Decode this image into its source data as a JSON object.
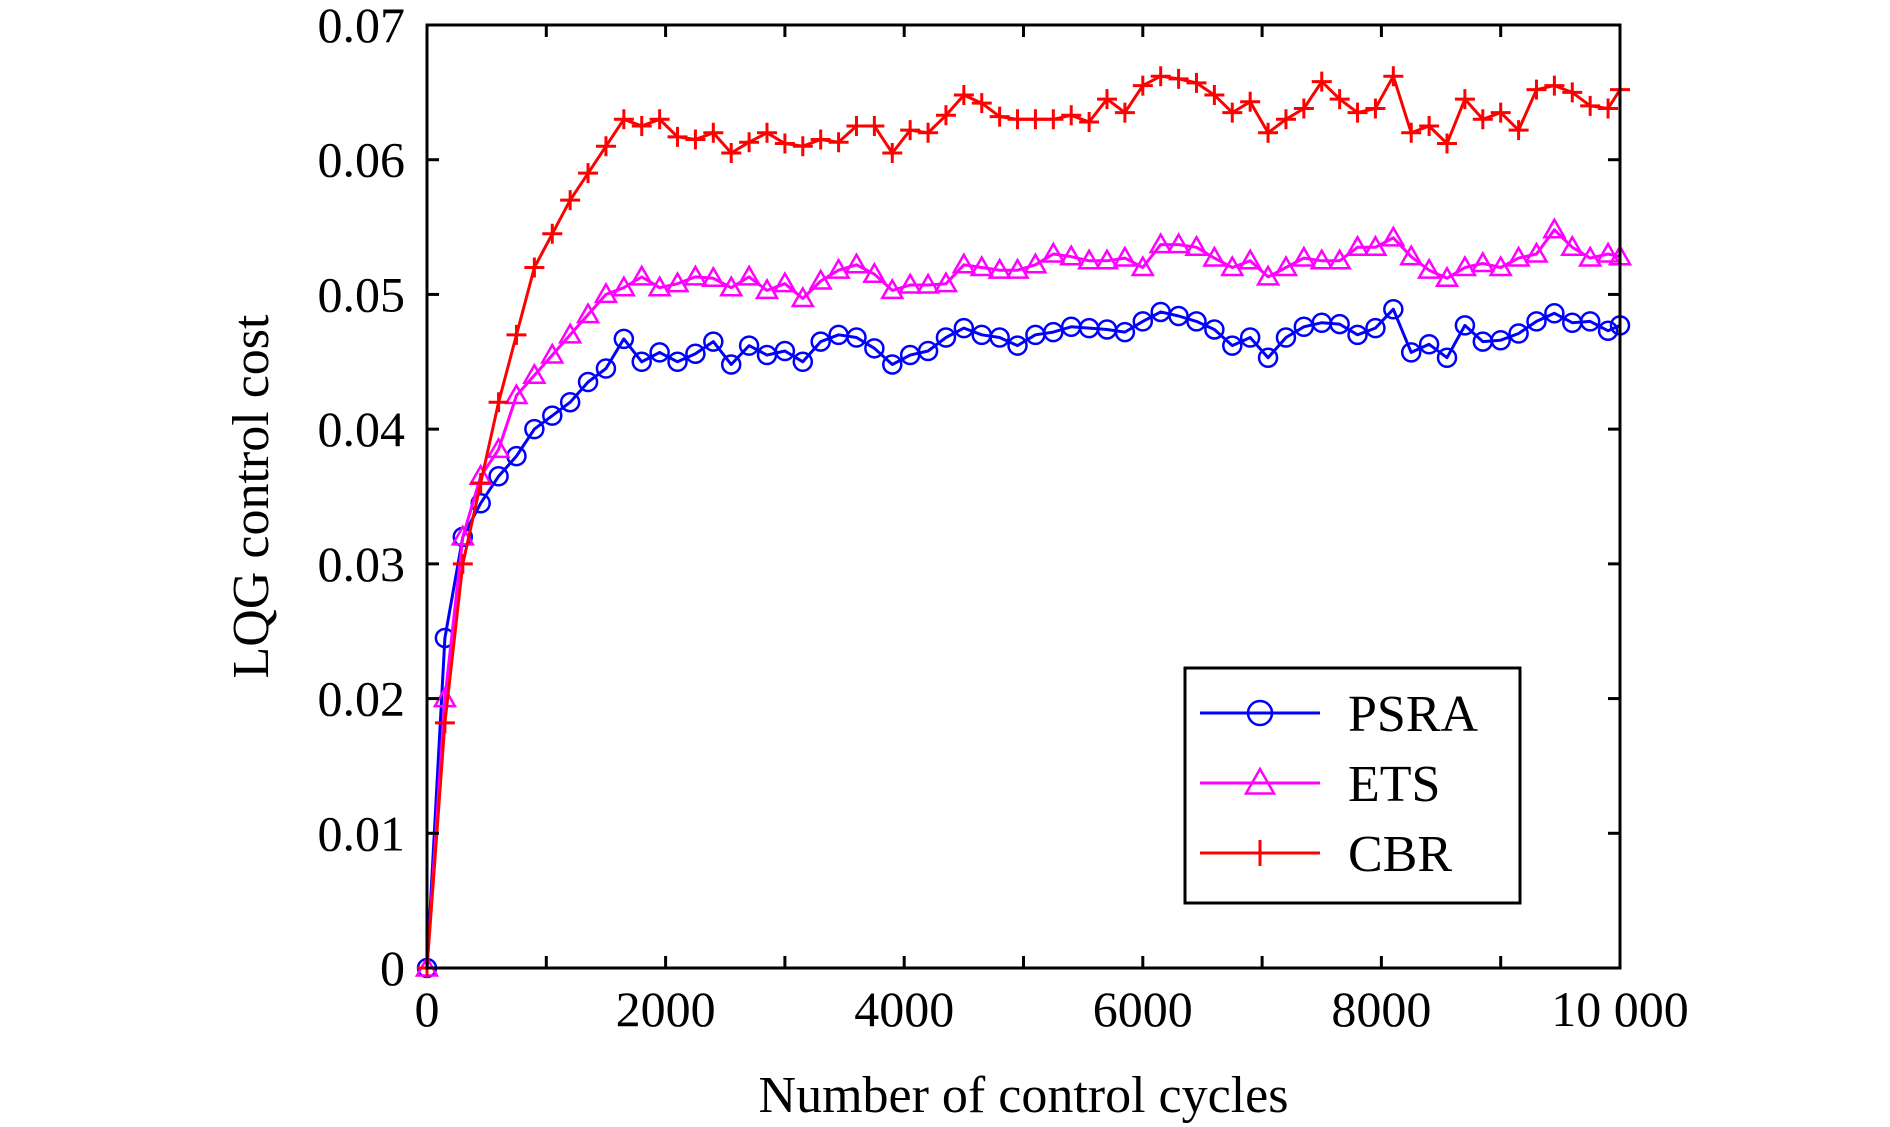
{
  "chart_data": {
    "type": "line",
    "xlabel": "Number of control cycles",
    "ylabel": "LQG control cost",
    "xlim": [
      0,
      10000
    ],
    "ylim": [
      0,
      0.07
    ],
    "xticks": [
      0,
      2000,
      4000,
      6000,
      8000,
      10000
    ],
    "xtick_labels": [
      "0",
      "2000",
      "4000",
      "6000",
      "8000",
      "10 000"
    ],
    "yticks": [
      0,
      0.01,
      0.02,
      0.03,
      0.04,
      0.05,
      0.06,
      0.07
    ],
    "ytick_labels": [
      "0",
      "0.01",
      "0.02",
      "0.03",
      "0.04",
      "0.05",
      "0.06",
      "0.07"
    ],
    "grid": false,
    "legend_position": "bottom-right",
    "x": [
      0,
      150,
      300,
      450,
      600,
      750,
      900,
      1050,
      1200,
      1350,
      1500,
      1650,
      1800,
      1950,
      2100,
      2250,
      2400,
      2550,
      2700,
      2850,
      3000,
      3150,
      3300,
      3450,
      3600,
      3750,
      3900,
      4050,
      4200,
      4350,
      4500,
      4650,
      4800,
      4950,
      5100,
      5250,
      5400,
      5550,
      5700,
      5850,
      6000,
      6150,
      6300,
      6450,
      6600,
      6750,
      6900,
      7050,
      7200,
      7350,
      7500,
      7650,
      7800,
      7950,
      8100,
      8250,
      8400,
      8550,
      8700,
      8850,
      9000,
      9150,
      9300,
      9450,
      9600,
      9750,
      9900,
      10000
    ],
    "series": [
      {
        "name": "PSRA",
        "color": "#0000ff",
        "marker": "circle",
        "values": [
          0,
          0.0245,
          0.032,
          0.0345,
          0.0365,
          0.038,
          0.04,
          0.041,
          0.042,
          0.0435,
          0.0445,
          0.0467,
          0.045,
          0.0457,
          0.045,
          0.0456,
          0.0465,
          0.0448,
          0.0462,
          0.0455,
          0.0458,
          0.045,
          0.0465,
          0.047,
          0.0468,
          0.046,
          0.0448,
          0.0455,
          0.0458,
          0.0468,
          0.0475,
          0.047,
          0.0468,
          0.0462,
          0.047,
          0.0472,
          0.0476,
          0.0475,
          0.0474,
          0.0472,
          0.048,
          0.0487,
          0.0484,
          0.048,
          0.0474,
          0.0462,
          0.0468,
          0.0453,
          0.0468,
          0.0476,
          0.0479,
          0.0478,
          0.047,
          0.0475,
          0.0489,
          0.0457,
          0.0463,
          0.0453,
          0.0477,
          0.0465,
          0.0466,
          0.0471,
          0.048,
          0.0486,
          0.0479,
          0.048,
          0.0473,
          0.0477
        ]
      },
      {
        "name": "ETS",
        "color": "#ff00ff",
        "marker": "triangle",
        "values": [
          0,
          0.02,
          0.032,
          0.0365,
          0.0385,
          0.0425,
          0.044,
          0.0455,
          0.047,
          0.0485,
          0.05,
          0.0505,
          0.0513,
          0.0505,
          0.0508,
          0.0513,
          0.0512,
          0.0505,
          0.0513,
          0.0503,
          0.0508,
          0.0497,
          0.051,
          0.0518,
          0.0522,
          0.0515,
          0.0503,
          0.0507,
          0.0507,
          0.0508,
          0.0522,
          0.052,
          0.0518,
          0.0518,
          0.0522,
          0.053,
          0.0528,
          0.0525,
          0.0525,
          0.0527,
          0.052,
          0.0537,
          0.0537,
          0.0535,
          0.0527,
          0.052,
          0.0525,
          0.0513,
          0.052,
          0.0527,
          0.0525,
          0.0525,
          0.0535,
          0.0535,
          0.0542,
          0.0528,
          0.0518,
          0.0512,
          0.052,
          0.0523,
          0.052,
          0.0527,
          0.053,
          0.0548,
          0.0535,
          0.0527,
          0.053,
          0.0528
        ]
      },
      {
        "name": "CBR",
        "color": "#ff0000",
        "marker": "plus",
        "values": [
          0,
          0.0182,
          0.03,
          0.036,
          0.042,
          0.047,
          0.052,
          0.0545,
          0.057,
          0.059,
          0.061,
          0.063,
          0.0625,
          0.063,
          0.0617,
          0.0615,
          0.062,
          0.0605,
          0.0613,
          0.062,
          0.0612,
          0.061,
          0.0615,
          0.0613,
          0.0625,
          0.0625,
          0.0605,
          0.0622,
          0.062,
          0.0633,
          0.0648,
          0.0642,
          0.0632,
          0.063,
          0.063,
          0.063,
          0.0633,
          0.0628,
          0.0645,
          0.0635,
          0.0655,
          0.0662,
          0.066,
          0.0657,
          0.0648,
          0.0635,
          0.0643,
          0.062,
          0.063,
          0.0638,
          0.0658,
          0.0645,
          0.0635,
          0.0638,
          0.0662,
          0.062,
          0.0625,
          0.0612,
          0.0645,
          0.063,
          0.0635,
          0.0622,
          0.0652,
          0.0655,
          0.065,
          0.064,
          0.0638,
          0.0652
        ]
      }
    ]
  }
}
